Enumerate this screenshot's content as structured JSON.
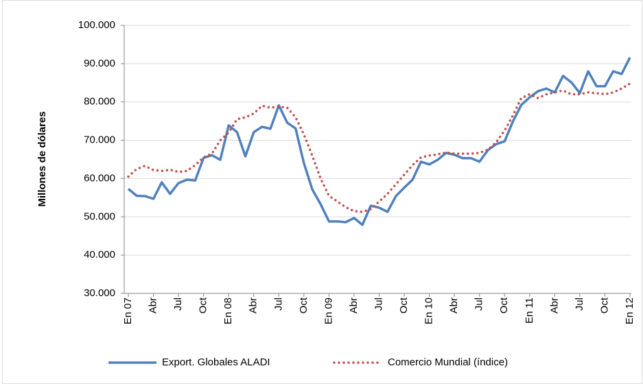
{
  "chart_data": {
    "type": "line",
    "y_label": "Millones de dólares",
    "categories": [
      "En 07",
      null,
      null,
      "Abr",
      null,
      null,
      "Jul",
      null,
      null,
      "Oct",
      null,
      null,
      "En 08",
      null,
      null,
      "Abr",
      null,
      null,
      "Jul",
      null,
      null,
      "Oct",
      null,
      null,
      "En 09",
      null,
      null,
      "Abr",
      null,
      null,
      "Jul",
      null,
      null,
      "Oct",
      null,
      null,
      "En 10",
      null,
      null,
      "Abr",
      null,
      null,
      "Jul",
      null,
      null,
      "Oct",
      null,
      null,
      "En 11",
      null,
      null,
      "Abr",
      null,
      null,
      "Jul",
      null,
      null,
      "Oct",
      null,
      null,
      "En 12"
    ],
    "series": [
      {
        "name": "Export. Globales ALADI",
        "color": "#4f81bd",
        "style": "solid",
        "values": [
          57300,
          55500,
          55400,
          54700,
          59000,
          56000,
          58800,
          59700,
          59500,
          65400,
          66100,
          64900,
          73900,
          72100,
          65800,
          72100,
          73500,
          73000,
          79100,
          74600,
          73100,
          64000,
          57200,
          53300,
          48800,
          48800,
          48600,
          49700,
          47900,
          52900,
          52400,
          51300,
          55400,
          57600,
          59700,
          64400,
          63700,
          64900,
          66700,
          66200,
          65300,
          65300,
          64400,
          67400,
          69000,
          69700,
          74900,
          79200,
          81200,
          82800,
          83500,
          82500,
          86800,
          85100,
          82300,
          88000,
          84100,
          84100,
          88000,
          87300,
          91600
        ]
      },
      {
        "name": "Comercio Mundial (índice)",
        "color": "#c0504d",
        "style": "dotted",
        "values": [
          60500,
          62500,
          63300,
          62200,
          62000,
          62300,
          61700,
          62000,
          63500,
          65500,
          66500,
          70000,
          72000,
          75500,
          76000,
          77000,
          79000,
          78500,
          78800,
          78500,
          76000,
          71500,
          66000,
          60000,
          55500,
          54000,
          52500,
          51500,
          51300,
          52000,
          54000,
          56000,
          58500,
          61000,
          63500,
          65500,
          66000,
          66300,
          66800,
          66500,
          66500,
          66500,
          66700,
          67500,
          69500,
          72500,
          76500,
          81000,
          82000,
          81000,
          82000,
          82500,
          83000,
          82000,
          82000,
          82500,
          82300,
          82000,
          82500,
          83500,
          84800
        ]
      }
    ],
    "ylim": [
      30000,
      100000
    ],
    "yticks": [
      {
        "value": 30000,
        "label": "30.000"
      },
      {
        "value": 40000,
        "label": "40.000"
      },
      {
        "value": 50000,
        "label": "50.000"
      },
      {
        "value": 60000,
        "label": "60.000"
      },
      {
        "value": 70000,
        "label": "70.000"
      },
      {
        "value": 80000,
        "label": "80.000"
      },
      {
        "value": 90000,
        "label": "90.000"
      },
      {
        "value": 100000,
        "label": "100.000"
      }
    ],
    "grid": true,
    "legend": "bottom"
  }
}
